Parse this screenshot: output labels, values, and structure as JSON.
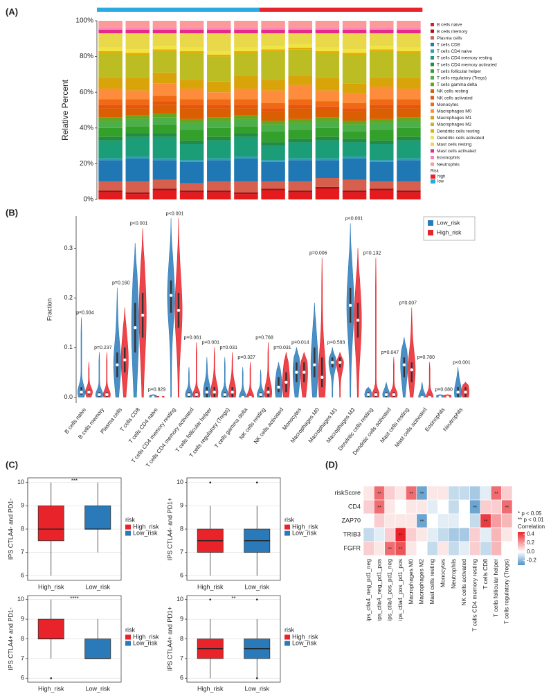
{
  "panels": [
    "(A)",
    "(B)",
    "(C)",
    "(D)"
  ],
  "chart_data": [
    {
      "type": "stacked_bar",
      "ylabel": "Relative Percent",
      "categories": [
        null,
        null,
        null,
        null,
        null,
        null,
        null,
        null,
        null,
        null,
        null,
        null
      ],
      "sample_groups": [
        "low",
        "low",
        "low",
        "low",
        "low",
        "low",
        "high",
        "high",
        "high",
        "high",
        "high",
        "high"
      ],
      "group_legend": {
        "title": "Risk",
        "items": [
          {
            "name": "high",
            "color": "#e8232a"
          },
          {
            "name": "low",
            "color": "#29abe2"
          }
        ]
      },
      "ylim": [
        0,
        100
      ],
      "yticks": [
        {
          "value": 0,
          "label": "0%"
        },
        {
          "value": 20,
          "label": "20%"
        },
        {
          "value": 40,
          "label": "40%"
        },
        {
          "value": 60,
          "label": "60%"
        },
        {
          "value": 80,
          "label": "80%"
        },
        {
          "value": 100,
          "label": "100%"
        }
      ],
      "series": [
        {
          "name": "B cells naive",
          "color": "#e41a1c",
          "values": [
            4,
            3,
            5,
            4,
            4,
            3,
            5,
            4,
            6,
            4,
            5,
            4
          ]
        },
        {
          "name": "B cells memory",
          "color": "#a50f15",
          "values": [
            1,
            1,
            1,
            1,
            1,
            1,
            1,
            1,
            1,
            1,
            1,
            1
          ]
        },
        {
          "name": "Plasma cells",
          "color": "#d6604d",
          "values": [
            5,
            6,
            5,
            4,
            5,
            6,
            4,
            5,
            5,
            6,
            4,
            5
          ]
        },
        {
          "name": "T cells CD8",
          "color": "#1f78b4",
          "values": [
            12,
            13,
            11,
            12,
            12,
            13,
            11,
            12,
            10,
            12,
            11,
            12
          ]
        },
        {
          "name": "T cells CD4 naive",
          "color": "#2c9fb8",
          "values": [
            1,
            1,
            1,
            1,
            1,
            1,
            1,
            1,
            1,
            1,
            1,
            1
          ]
        },
        {
          "name": "T cells CD4 memory resting",
          "color": "#1b9e77",
          "values": [
            10,
            11,
            12,
            9,
            10,
            11,
            8,
            9,
            10,
            8,
            9,
            10
          ]
        },
        {
          "name": "T cells CD4 memory activated",
          "color": "#238b45",
          "values": [
            2,
            2,
            2,
            2,
            2,
            2,
            2,
            2,
            2,
            2,
            2,
            2
          ]
        },
        {
          "name": "T cells follicular helper",
          "color": "#33a02c",
          "values": [
            5,
            4,
            5,
            6,
            5,
            4,
            6,
            5,
            5,
            4,
            6,
            5
          ]
        },
        {
          "name": "T cells regulatory (Tregs)",
          "color": "#4daf4a",
          "values": [
            4,
            4,
            4,
            4,
            4,
            4,
            4,
            4,
            4,
            4,
            4,
            4
          ]
        },
        {
          "name": "T cells gamma delta",
          "color": "#66a61e",
          "values": [
            2,
            2,
            2,
            2,
            2,
            2,
            2,
            2,
            2,
            2,
            2,
            2
          ]
        },
        {
          "name": "NK cells resting",
          "color": "#d95f02",
          "values": [
            5,
            4,
            5,
            6,
            5,
            4,
            5,
            6,
            4,
            5,
            6,
            5
          ]
        },
        {
          "name": "NK cells activated",
          "color": "#e6550d",
          "values": [
            2,
            2,
            2,
            2,
            2,
            2,
            2,
            2,
            2,
            2,
            2,
            2
          ]
        },
        {
          "name": "Monocytes",
          "color": "#f16913",
          "values": [
            3,
            3,
            3,
            3,
            3,
            3,
            3,
            3,
            3,
            3,
            3,
            3
          ]
        },
        {
          "name": "Macrophages M0",
          "color": "#fd8d3c",
          "values": [
            6,
            5,
            7,
            6,
            4,
            6,
            7,
            8,
            6,
            5,
            7,
            6
          ]
        },
        {
          "name": "Macrophages M1",
          "color": "#d9a30a",
          "values": [
            6,
            7,
            6,
            5,
            6,
            7,
            6,
            5,
            7,
            6,
            5,
            6
          ]
        },
        {
          "name": "Macrophages M2",
          "color": "#bcbd22",
          "values": [
            14,
            13,
            12,
            15,
            14,
            13,
            16,
            15,
            14,
            16,
            15,
            14
          ]
        },
        {
          "name": "Dendritic cells resting",
          "color": "#e6ab02",
          "values": [
            1,
            1,
            1,
            1,
            1,
            1,
            1,
            1,
            1,
            1,
            1,
            1
          ]
        },
        {
          "name": "Dendritic cells activated",
          "color": "#f0e442",
          "values": [
            2,
            2,
            2,
            2,
            2,
            2,
            2,
            2,
            2,
            2,
            2,
            2
          ]
        },
        {
          "name": "Mast cells resting",
          "color": "#e8d84a",
          "values": [
            8,
            9,
            7,
            8,
            10,
            8,
            7,
            6,
            8,
            9,
            7,
            8
          ]
        },
        {
          "name": "Mast cells activated",
          "color": "#e7298a",
          "values": [
            2,
            2,
            2,
            2,
            2,
            2,
            2,
            2,
            2,
            2,
            2,
            2
          ]
        },
        {
          "name": "Eosinophils",
          "color": "#f781bf",
          "values": [
            1,
            1,
            1,
            1,
            1,
            1,
            1,
            1,
            1,
            1,
            1,
            1
          ]
        },
        {
          "name": "Neutrophils",
          "color": "#fb9a99",
          "values": [
            4,
            4,
            4,
            4,
            4,
            4,
            4,
            4,
            4,
            4,
            4,
            4
          ]
        }
      ]
    },
    {
      "type": "violin",
      "ylabel": "Fraction",
      "categories": [
        "B cells naive",
        "B cells memory",
        "Plasma cells",
        "T cells CD8",
        "T cells CD4 naive",
        "T cells CD4 memory resting",
        "T cells CD4 memory activated",
        "T cells follicular helper",
        "T cells regulatory (Tregs)",
        "T cells gamma delta",
        "NK cells resting",
        "NK cells activated",
        "Monocytes",
        "Macrophages M0",
        "Macrophages M1",
        "Macrophages M2",
        "Dendritic cells resting",
        "Dendritic cells activated",
        "Mast cells resting",
        "Mast cells activated",
        "Eosinophils",
        "Neutrophils"
      ],
      "pvalues": [
        "p=0.934",
        "p=0.237",
        "p=0.160",
        "p<0.001",
        "p=0.829",
        "p<0.001",
        "p=0.061",
        "p=0.001",
        "p=0.031",
        "p=0.327",
        "p=0.768",
        "p=0.031",
        "p=0.014",
        "p=0.006",
        "p=0.593",
        "p<0.001",
        "p=0.132",
        "p=0.047",
        "p=0.007",
        "p=0.780",
        "p=0.080",
        "p<0.001"
      ],
      "ylim": [
        -0.012,
        0.365
      ],
      "yticks": [
        {
          "value": 0,
          "label": "0.0"
        },
        0.1,
        0.2,
        0.3
      ],
      "legend": "top-right",
      "series": [
        {
          "name": "Low_risk",
          "color": "#2a7ab9",
          "values": [
            0.01,
            0.005,
            0.065,
            0.14,
            0,
            0.205,
            0.005,
            0.01,
            0.005,
            0,
            0.005,
            0.02,
            0.05,
            0.065,
            0.07,
            0.185,
            0.005,
            0.005,
            0.065,
            0,
            0,
            0.01
          ],
          "q1": [
            0.005,
            0,
            0.04,
            0.09,
            0,
            0.17,
            0,
            0,
            0,
            0,
            0,
            0.01,
            0.03,
            0.04,
            0.06,
            0.15,
            0,
            0,
            0.04,
            0,
            0,
            0
          ],
          "q3": [
            0.02,
            0.01,
            0.09,
            0.19,
            0.002,
            0.235,
            0.01,
            0.02,
            0.01,
            0.005,
            0.01,
            0.04,
            0.07,
            0.1,
            0.08,
            0.22,
            0.01,
            0.01,
            0.08,
            0.005,
            0.001,
            0.02
          ],
          "max": [
            0.16,
            0.09,
            0.22,
            0.31,
            0.005,
            0.36,
            0.06,
            0.08,
            0.08,
            0.06,
            0.055,
            0.07,
            0.1,
            0.19,
            0.1,
            0.35,
            0.02,
            0.03,
            0.12,
            0.03,
            0.005,
            0.06
          ]
        },
        {
          "name": "High_risk",
          "color": "#e8232a",
          "values": [
            0.01,
            0.005,
            0.075,
            0.165,
            0,
            0.175,
            0.005,
            0.01,
            0.01,
            0,
            0.01,
            0.03,
            0.05,
            0.04,
            0.07,
            0.155,
            0.005,
            0.005,
            0.055,
            0,
            0,
            0.01
          ],
          "q1": [
            0.005,
            0,
            0.05,
            0.12,
            0,
            0.14,
            0,
            0,
            0,
            0,
            0,
            0.01,
            0.03,
            0.02,
            0.06,
            0.12,
            0,
            0,
            0.03,
            0,
            0,
            0
          ],
          "q3": [
            0.015,
            0.01,
            0.1,
            0.21,
            0.001,
            0.21,
            0.01,
            0.02,
            0.02,
            0.005,
            0.02,
            0.05,
            0.07,
            0.08,
            0.08,
            0.19,
            0.01,
            0.01,
            0.07,
            0.005,
            0.001,
            0.02
          ],
          "max": [
            0.07,
            0.09,
            0.18,
            0.34,
            0.002,
            0.36,
            0.11,
            0.1,
            0.09,
            0.07,
            0.11,
            0.09,
            0.09,
            0.28,
            0.09,
            0.3,
            0.28,
            0.08,
            0.18,
            0.07,
            0.005,
            0.03
          ]
        }
      ]
    },
    {
      "type": "box",
      "ylabel": "IPS CTLA4- and PD1-",
      "significance": "***",
      "categories": [
        "High_risk",
        "Low_risk"
      ],
      "colors": [
        "#e8232a",
        "#2a7ab9"
      ],
      "legend_title": "risk",
      "ylim": [
        5.8,
        10.2
      ],
      "yticks": [
        6,
        7,
        8,
        9,
        10
      ],
      "grid": true,
      "median": [
        8,
        8
      ],
      "q1": [
        7.5,
        8
      ],
      "q3": [
        9,
        9
      ],
      "whisker_low": [
        6,
        7
      ],
      "whisker_high": [
        10,
        10
      ],
      "outliers": [
        [],
        []
      ]
    },
    {
      "type": "box",
      "ylabel": "IPS CTLA4- and PD1+",
      "categories": [
        "High_risk",
        "Low_risk"
      ],
      "colors": [
        "#e8232a",
        "#2a7ab9"
      ],
      "legend_title": "risk",
      "ylim": [
        5.8,
        10.2
      ],
      "yticks": [
        6,
        7,
        8,
        9,
        10
      ],
      "grid": true,
      "median": [
        7.5,
        7.5
      ],
      "q1": [
        7,
        7
      ],
      "q3": [
        8,
        8
      ],
      "whisker_low": [
        6,
        6
      ],
      "whisker_high": [
        9,
        9
      ],
      "outliers": [
        [
          10
        ],
        [
          10
        ]
      ]
    },
    {
      "type": "box",
      "ylabel": "IPS CTLA4+ and PD1-",
      "significance": "****",
      "categories": [
        "High_risk",
        "Low_risk"
      ],
      "colors": [
        "#e8232a",
        "#2a7ab9"
      ],
      "legend_title": "risk",
      "ylim": [
        5.8,
        10.2
      ],
      "yticks": [
        6,
        7,
        8,
        9,
        10
      ],
      "grid": true,
      "median": [
        8,
        7
      ],
      "q1": [
        8,
        7
      ],
      "q3": [
        9,
        8
      ],
      "whisker_low": [
        7,
        7
      ],
      "whisker_high": [
        10,
        9
      ],
      "outliers": [
        [
          6
        ],
        []
      ]
    },
    {
      "type": "box",
      "ylabel": "IPS CTLA4+ and PD1+",
      "significance": "**",
      "categories": [
        "High_risk",
        "Low_risk"
      ],
      "colors": [
        "#e8232a",
        "#2a7ab9"
      ],
      "legend_title": "risk",
      "ylim": [
        5.8,
        10.2
      ],
      "yticks": [
        6,
        7,
        8,
        9,
        10
      ],
      "grid": true,
      "median": [
        7.5,
        7.5
      ],
      "q1": [
        7,
        7
      ],
      "q3": [
        8,
        8
      ],
      "whisker_low": [
        6,
        6
      ],
      "whisker_high": [
        9,
        9
      ],
      "outliers": [
        [
          10
        ],
        [
          10,
          6
        ]
      ]
    },
    {
      "type": "heatmap",
      "rows": [
        "riskScore",
        "CD4",
        "ZAP70",
        "TRIB3",
        "FGFR"
      ],
      "columns": [
        "ips_ctla4_neg_pd1_neg",
        "ips_ctla4_neg_pd1_pos",
        "ips_ctla4_pos_pd1_neg",
        "ips_ctla4_pos_pd1_pos",
        "Macrophages M0",
        "Macrophages M2",
        "Mast cells resting",
        "Monocytes",
        "Neutrophils",
        "NK cells activated",
        "T cells CD4 memory resting",
        "T cells CD8",
        "T cells follicular helper",
        "T cells regulatory (Tregs)"
      ],
      "values": [
        [
          0.05,
          0.3,
          0.1,
          0.05,
          0.3,
          -0.25,
          0.05,
          0.05,
          -0.1,
          -0.1,
          -0.15,
          -0.05,
          0.3,
          0.1
        ],
        [
          0.1,
          0.3,
          0.05,
          0,
          0.05,
          0.05,
          -0.05,
          0,
          -0.1,
          0,
          -0.25,
          0.1,
          0.1,
          0.3
        ],
        [
          0,
          0.1,
          0.05,
          0.05,
          0.05,
          -0.25,
          0,
          -0.05,
          -0.05,
          0,
          -0.1,
          0.4,
          0.2,
          0.15
        ],
        [
          -0.1,
          -0.05,
          0.1,
          0.45,
          0.1,
          0.05,
          -0.05,
          -0.1,
          -0.15,
          -0.15,
          0.1,
          -0.05,
          0.15,
          0.05
        ],
        [
          0.1,
          0.05,
          0.3,
          0.35,
          0.05,
          0,
          -0.1,
          0.05,
          -0.1,
          -0.05,
          0.1,
          -0.1,
          0.15,
          0
        ]
      ],
      "stars": [
        [
          null,
          "**",
          null,
          null,
          "**",
          "**",
          null,
          null,
          null,
          null,
          null,
          null,
          "**",
          null
        ],
        [
          null,
          "**",
          null,
          null,
          null,
          null,
          null,
          null,
          null,
          null,
          "**",
          null,
          null,
          "**"
        ],
        [
          null,
          null,
          null,
          null,
          null,
          "**",
          null,
          null,
          null,
          null,
          null,
          "**",
          null,
          null
        ],
        [
          null,
          null,
          null,
          "**",
          null,
          null,
          null,
          null,
          null,
          null,
          null,
          null,
          null,
          null
        ],
        [
          null,
          null,
          "**",
          "**",
          null,
          null,
          null,
          null,
          null,
          null,
          null,
          null,
          null,
          null
        ]
      ],
      "significance_legend": [
        "* p < 0.05",
        "** p < 0.01"
      ],
      "colorbar_title": "Correlation",
      "clim": [
        -0.3,
        0.45
      ],
      "colorbar_ticks": [
        0.4,
        0.2,
        {
          "value": 0,
          "label": "0.0"
        },
        -0.2
      ],
      "low_color": "#4f93c6",
      "high_color": "#e8232a"
    }
  ]
}
